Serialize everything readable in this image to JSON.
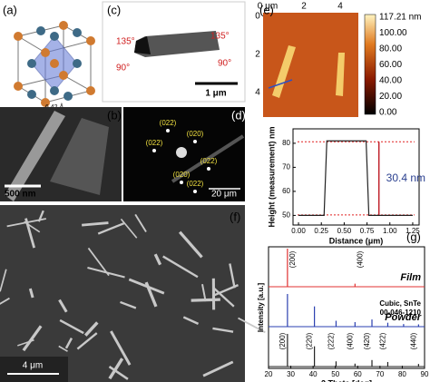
{
  "panel_labels": [
    "(a)",
    "(b)",
    "(c)",
    "(d)",
    "(e)",
    "(f)",
    "(g)"
  ],
  "structure": {
    "lattice": "6.42 Å"
  },
  "tem_c": {
    "angles": [
      "135°",
      "90°",
      "135°",
      "90°"
    ],
    "scale": "1 μm"
  },
  "tem_b": {
    "scale": "500 nm"
  },
  "saed_d": {
    "spots": [
      "(022)",
      "(020)",
      "(022)",
      "(022)",
      "(020)",
      "(022)"
    ],
    "scale": "20 μm"
  },
  "sem_f": {
    "scale": "4 μm"
  },
  "afm": {
    "x_axis": [
      "0 μm",
      "2",
      "4"
    ],
    "y_axis": [
      "0",
      "2",
      "4"
    ],
    "colorbar": [
      "117.21 nm",
      "100.00",
      "80.00",
      "60.00",
      "40.00",
      "20.00",
      "0.00"
    ]
  },
  "chart_data": [
    {
      "type": "line",
      "xlabel": "Distance (μm)",
      "ylabel": "Height (measurement) nm",
      "annotation": "30.4 nm",
      "x": [
        0,
        0.28,
        0.31,
        0.74,
        0.77,
        1.25
      ],
      "series": [
        {
          "color": "#222222",
          "values": [
            50,
            50,
            81,
            81,
            50,
            50
          ]
        }
      ],
      "ref_levels": [
        50.2,
        80.6
      ],
      "ref_color": "#e02020",
      "arrow_color": "#c0202a",
      "annotation_color": "#2a3f8f",
      "xlim": [
        -0.06,
        1.32
      ],
      "ylim": [
        46,
        86
      ],
      "xticks": [
        {
          "value": 0,
          "label": "0.00"
        },
        {
          "value": 0.25,
          "label": "0.25"
        },
        {
          "value": 0.5,
          "label": "0.50"
        },
        {
          "value": 0.75,
          "label": "0.75"
        },
        {
          "value": 1,
          "label": "1.00"
        },
        {
          "value": 1.25,
          "label": "1.25"
        }
      ],
      "yticks": [
        50,
        60,
        70,
        80
      ]
    },
    {
      "type": "sticks",
      "xlabel": "2 Theta [deg]",
      "ylabel": "Intensity [a.u.]",
      "xlim": [
        20,
        90
      ],
      "xticks": [
        20,
        30,
        40,
        50,
        60,
        70,
        80,
        90
      ],
      "series": [
        {
          "name": "Film",
          "color": "#e03030",
          "x": [
            28.5,
            58.8
          ],
          "values": [
            100,
            8
          ],
          "peak_labels": [
            "(200)",
            "(400)"
          ]
        },
        {
          "name": "Powder",
          "color": "#2a3fb0",
          "x": [
            28.5,
            40.6,
            50.3,
            58.8,
            66.4,
            73.5,
            80.6,
            87.3
          ],
          "values": [
            100,
            62,
            18,
            14,
            22,
            12,
            8,
            7
          ]
        },
        {
          "name": "Cubic, SnTe",
          "note": "00-046-1210",
          "color": "#222222",
          "x": [
            28.5,
            40.6,
            50.3,
            58.8,
            66.4,
            73.5,
            87.3
          ],
          "values": [
            100,
            62,
            16,
            9,
            20,
            14,
            8
          ],
          "peak_labels": [
            "(200)",
            "(220)",
            "(222)",
            "(400)",
            "(420)",
            "(422)",
            "(440)"
          ]
        }
      ]
    }
  ]
}
